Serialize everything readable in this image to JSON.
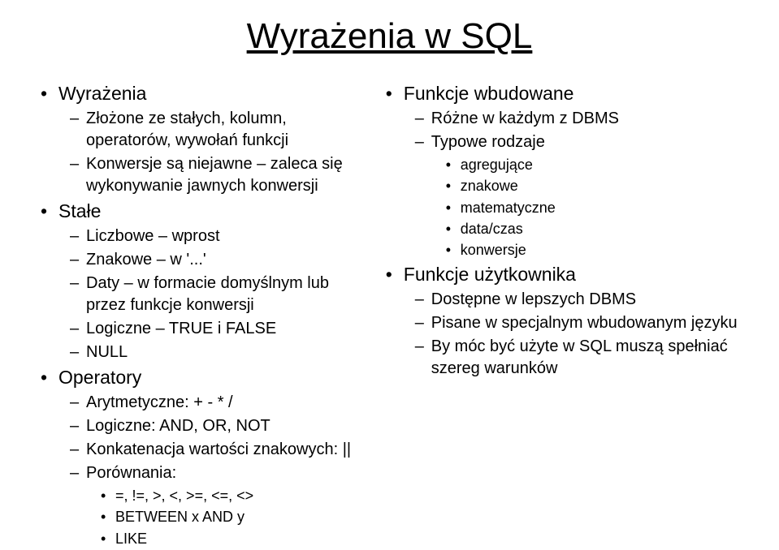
{
  "title": "Wyrażenia w SQL",
  "left": {
    "items": [
      {
        "l": 1,
        "t": "Wyrażenia"
      },
      {
        "l": 2,
        "t": "Złożone ze stałych, kolumn, operatorów, wywołań funkcji"
      },
      {
        "l": 2,
        "t": "Konwersje są niejawne – zaleca się wykonywanie jawnych konwersji"
      },
      {
        "l": 1,
        "t": "Stałe"
      },
      {
        "l": 2,
        "t": "Liczbowe – wprost"
      },
      {
        "l": 2,
        "t": "Znakowe – w '...'"
      },
      {
        "l": 2,
        "t": "Daty – w formacie domyślnym lub przez funkcje konwersji"
      },
      {
        "l": 2,
        "t": "Logiczne – TRUE i FALSE"
      },
      {
        "l": 2,
        "t": "NULL"
      },
      {
        "l": 1,
        "t": "Operatory"
      },
      {
        "l": 2,
        "t": "Arytmetyczne: + - * /"
      },
      {
        "l": 2,
        "t": "Logiczne: AND, OR, NOT"
      },
      {
        "l": 2,
        "t": "Konkatenacja wartości znakowych: ||"
      },
      {
        "l": 2,
        "t": "Porównania:"
      },
      {
        "l": 3,
        "t": "=, !=, >, <, >=, <=, <>"
      },
      {
        "l": 3,
        "t": "BETWEEN x AND y"
      },
      {
        "l": 3,
        "t": "LIKE"
      }
    ]
  },
  "right": {
    "items": [
      {
        "l": 1,
        "t": "Funkcje wbudowane"
      },
      {
        "l": 2,
        "t": "Różne w każdym z DBMS"
      },
      {
        "l": 2,
        "t": "Typowe rodzaje"
      },
      {
        "l": 3,
        "t": "agregujące"
      },
      {
        "l": 3,
        "t": "znakowe"
      },
      {
        "l": 3,
        "t": "matematyczne"
      },
      {
        "l": 3,
        "t": "data/czas"
      },
      {
        "l": 3,
        "t": "konwersje"
      },
      {
        "l": 1,
        "t": "Funkcje użytkownika"
      },
      {
        "l": 2,
        "t": "Dostępne w lepszych DBMS"
      },
      {
        "l": 2,
        "t": "Pisane w specjalnym wbudowanym języku"
      },
      {
        "l": 2,
        "t": "By móc być użyte w SQL muszą spełniać szereg warunków"
      }
    ]
  }
}
